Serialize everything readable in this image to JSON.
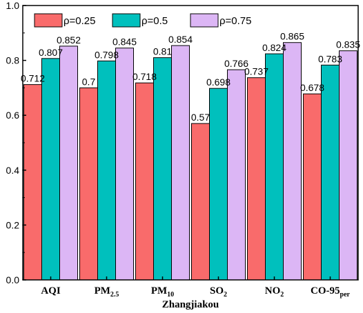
{
  "chart_data": {
    "type": "bar",
    "categories": [
      "AQI",
      "PM2.5",
      "PM10",
      "SO2",
      "NO2",
      "CO-95per"
    ],
    "category_labels": [
      {
        "main": "AQI",
        "sub": ""
      },
      {
        "main": "PM",
        "sub": "2.5"
      },
      {
        "main": "PM",
        "sub": "10"
      },
      {
        "main": "SO",
        "sub": "2"
      },
      {
        "main": "NO",
        "sub": "2"
      },
      {
        "main": "CO-95",
        "sub": "per"
      }
    ],
    "series": [
      {
        "name": "ρ=0.25",
        "color": "#f96b6b",
        "values": [
          0.712,
          0.7,
          0.718,
          0.57,
          0.737,
          0.678
        ],
        "labels": [
          "0.712",
          "0.7",
          "0.718",
          "0.57",
          "0.737",
          "0.678"
        ]
      },
      {
        "name": "ρ=0.5",
        "color": "#00c0bd",
        "values": [
          0.807,
          0.798,
          0.81,
          0.698,
          0.824,
          0.783
        ],
        "labels": [
          "0.807",
          "0.798",
          "0.81",
          "0.698",
          "0.824",
          "0.783"
        ]
      },
      {
        "name": "ρ=0.75",
        "color": "#dcb6f5",
        "values": [
          0.852,
          0.845,
          0.854,
          0.766,
          0.865,
          0.835
        ],
        "labels": [
          "0.852",
          "0.845",
          "0.854",
          "0.766",
          "0.865",
          "0.835"
        ]
      }
    ],
    "xlabel": "Zhangjiakou",
    "ylabel": "",
    "ylim": [
      0,
      1.0
    ],
    "yticks": [
      "0.0",
      "0.2",
      "0.4",
      "0.6",
      "0.8",
      "1.0"
    ],
    "legend_position": "top-left",
    "grid": false
  }
}
